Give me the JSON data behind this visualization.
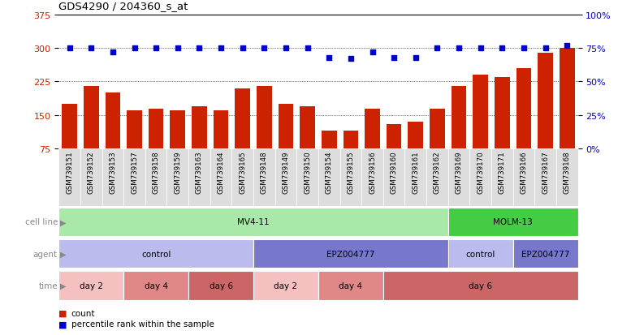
{
  "title": "GDS4290 / 204360_s_at",
  "samples": [
    "GSM739151",
    "GSM739152",
    "GSM739153",
    "GSM739157",
    "GSM739158",
    "GSM739159",
    "GSM739163",
    "GSM739164",
    "GSM739165",
    "GSM739148",
    "GSM739149",
    "GSM739150",
    "GSM739154",
    "GSM739155",
    "GSM739156",
    "GSM739160",
    "GSM739161",
    "GSM739162",
    "GSM739169",
    "GSM739170",
    "GSM739171",
    "GSM739166",
    "GSM739167",
    "GSM739168"
  ],
  "counts": [
    175,
    215,
    200,
    160,
    165,
    160,
    170,
    160,
    210,
    215,
    175,
    170,
    115,
    115,
    165,
    130,
    135,
    165,
    215,
    240,
    235,
    255,
    290,
    300
  ],
  "percentiles": [
    75,
    75,
    72,
    75,
    75,
    75,
    75,
    75,
    75,
    75,
    75,
    75,
    68,
    67,
    72,
    68,
    68,
    75,
    75,
    75,
    75,
    75,
    75,
    77
  ],
  "bar_color": "#cc2200",
  "dot_color": "#0000cc",
  "ylim_left": [
    75,
    375
  ],
  "ylim_right": [
    0,
    100
  ],
  "yticks_left": [
    75,
    150,
    225,
    300,
    375
  ],
  "yticks_right": [
    0,
    25,
    50,
    75,
    100
  ],
  "ytick_labels_right": [
    "0%",
    "25%",
    "50%",
    "75%",
    "100%"
  ],
  "grid_values": [
    150,
    225,
    300
  ],
  "cell_line_data": [
    {
      "label": "MV4-11",
      "start": 0,
      "end": 18,
      "color": "#a8e8a8"
    },
    {
      "label": "MOLM-13",
      "start": 18,
      "end": 24,
      "color": "#44cc44"
    }
  ],
  "agent_data": [
    {
      "label": "control",
      "start": 0,
      "end": 9,
      "color": "#bbbbee"
    },
    {
      "label": "EPZ004777",
      "start": 9,
      "end": 18,
      "color": "#7777cc"
    },
    {
      "label": "control",
      "start": 18,
      "end": 21,
      "color": "#bbbbee"
    },
    {
      "label": "EPZ004777",
      "start": 21,
      "end": 24,
      "color": "#7777cc"
    }
  ],
  "time_data": [
    {
      "label": "day 2",
      "start": 0,
      "end": 3,
      "color": "#f5c0c0"
    },
    {
      "label": "day 4",
      "start": 3,
      "end": 6,
      "color": "#e08888"
    },
    {
      "label": "day 6",
      "start": 6,
      "end": 9,
      "color": "#cc6666"
    },
    {
      "label": "day 2",
      "start": 9,
      "end": 12,
      "color": "#f5c0c0"
    },
    {
      "label": "day 4",
      "start": 12,
      "end": 15,
      "color": "#e08888"
    },
    {
      "label": "day 6",
      "start": 15,
      "end": 24,
      "color": "#cc6666"
    }
  ],
  "legend_count_color": "#cc2200",
  "legend_dot_color": "#0000cc",
  "bg_color": "#ffffff",
  "row_label_color": "#888888",
  "tick_bg_color": "#dddddd",
  "n_samples": 24
}
